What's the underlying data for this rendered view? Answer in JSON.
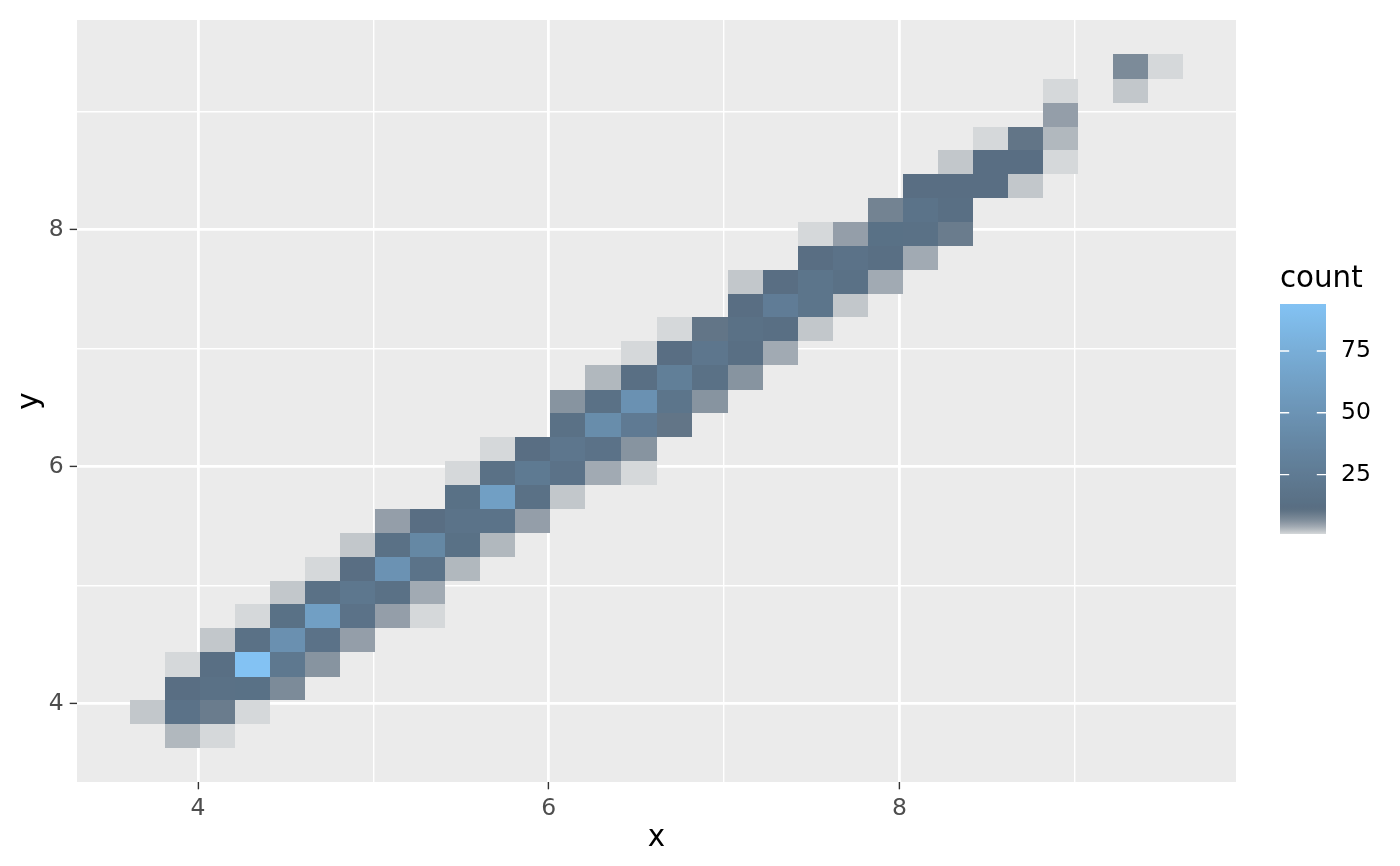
{
  "chart_data": {
    "type": "scatter",
    "marker": "square",
    "xlabel": "x",
    "ylabel": "y",
    "clabel": "count",
    "xlim": [
      3.31,
      9.92
    ],
    "ylim": [
      3.34,
      9.77
    ],
    "xticks": [
      4,
      {
        "value": 5,
        "label": null
      },
      6,
      {
        "value": 7,
        "label": null
      },
      8,
      {
        "value": 9,
        "label": null
      }
    ],
    "yticks": [
      4,
      {
        "value": 5,
        "label": null
      },
      6,
      {
        "value": 7,
        "label": null
      },
      8,
      {
        "value": 9,
        "label": null
      }
    ],
    "grid": true,
    "clim": [
      1,
      94
    ],
    "cticks": [
      25,
      50,
      75
    ],
    "x": [
      3.91,
      4.11,
      3.71,
      3.91,
      4.11,
      4.31,
      3.91,
      4.11,
      4.31,
      4.51,
      3.91,
      4.11,
      4.31,
      4.51,
      4.71,
      4.11,
      4.31,
      4.51,
      4.71,
      4.91,
      4.31,
      4.51,
      4.71,
      4.91,
      5.11,
      5.31,
      4.51,
      4.71,
      4.91,
      5.11,
      5.31,
      4.71,
      4.91,
      5.11,
      5.31,
      5.51,
      4.91,
      5.11,
      5.31,
      5.51,
      5.71,
      5.11,
      5.31,
      5.51,
      5.71,
      5.91,
      5.51,
      5.71,
      5.91,
      6.11,
      5.51,
      5.71,
      5.91,
      6.11,
      6.31,
      6.52,
      5.71,
      5.91,
      6.11,
      6.31,
      6.52,
      6.11,
      6.31,
      6.52,
      6.72,
      6.11,
      6.31,
      6.52,
      6.72,
      6.92,
      6.31,
      6.52,
      6.72,
      6.92,
      7.12,
      6.52,
      6.72,
      6.92,
      7.12,
      7.32,
      6.72,
      6.92,
      7.12,
      7.32,
      7.52,
      7.12,
      7.32,
      7.52,
      7.72,
      7.12,
      7.32,
      7.52,
      7.72,
      7.92,
      7.52,
      7.72,
      7.92,
      8.12,
      7.52,
      7.72,
      7.92,
      8.12,
      8.32,
      7.92,
      8.12,
      8.32,
      8.12,
      8.32,
      8.52,
      8.72,
      8.32,
      8.52,
      8.72,
      8.92,
      8.52,
      8.72,
      8.92,
      8.92,
      8.92,
      9.32,
      9.32,
      9.52
    ],
    "values": [
      3.73,
      3.73,
      3.93,
      3.93,
      3.93,
      3.93,
      4.13,
      4.13,
      4.13,
      4.13,
      4.33,
      4.33,
      4.33,
      4.33,
      4.33,
      4.54,
      4.54,
      4.54,
      4.54,
      4.54,
      4.74,
      4.74,
      4.74,
      4.74,
      4.74,
      4.74,
      4.94,
      4.94,
      4.94,
      4.94,
      4.94,
      5.14,
      5.14,
      5.14,
      5.14,
      5.14,
      5.34,
      5.34,
      5.34,
      5.34,
      5.34,
      5.54,
      5.54,
      5.54,
      5.54,
      5.54,
      5.75,
      5.75,
      5.75,
      5.75,
      5.95,
      5.95,
      5.95,
      5.95,
      5.95,
      5.95,
      6.15,
      6.15,
      6.15,
      6.15,
      6.15,
      6.35,
      6.35,
      6.35,
      6.35,
      6.55,
      6.55,
      6.55,
      6.55,
      6.55,
      6.75,
      6.75,
      6.75,
      6.75,
      6.75,
      6.96,
      6.96,
      6.96,
      6.96,
      6.96,
      7.16,
      7.16,
      7.16,
      7.16,
      7.16,
      7.36,
      7.36,
      7.36,
      7.36,
      7.56,
      7.56,
      7.56,
      7.56,
      7.56,
      7.76,
      7.76,
      7.76,
      7.76,
      7.96,
      7.96,
      7.96,
      7.96,
      7.96,
      8.17,
      8.17,
      8.17,
      8.37,
      8.37,
      8.37,
      8.37,
      8.57,
      8.57,
      8.57,
      8.57,
      8.77,
      8.77,
      8.77,
      8.97,
      9.17,
      9.17,
      9.38,
      9.38
    ],
    "cvalues": [
      3,
      1,
      2,
      16,
      9,
      1,
      12,
      15,
      14,
      7,
      1,
      13,
      94,
      22,
      6,
      2,
      15,
      47,
      16,
      5,
      1,
      14,
      61,
      16,
      5,
      1,
      2,
      15,
      21,
      15,
      4,
      1,
      12,
      49,
      17,
      3,
      2,
      15,
      38,
      14,
      3,
      5,
      12,
      17,
      17,
      5,
      14,
      61,
      15,
      2,
      1,
      15,
      24,
      16,
      4,
      1,
      1,
      12,
      20,
      16,
      6,
      15,
      43,
      25,
      10,
      6,
      15,
      48,
      19,
      6,
      3,
      13,
      29,
      15,
      6,
      1,
      12,
      20,
      13,
      4,
      1,
      10,
      15,
      13,
      2,
      12,
      27,
      19,
      2,
      2,
      12,
      19,
      15,
      4,
      12,
      16,
      13,
      4,
      1,
      5,
      14,
      15,
      9,
      8,
      17,
      13,
      12,
      12,
      12,
      2,
      2,
      12,
      12,
      1,
      1,
      10,
      3,
      5,
      1,
      2,
      7,
      1
    ]
  }
}
